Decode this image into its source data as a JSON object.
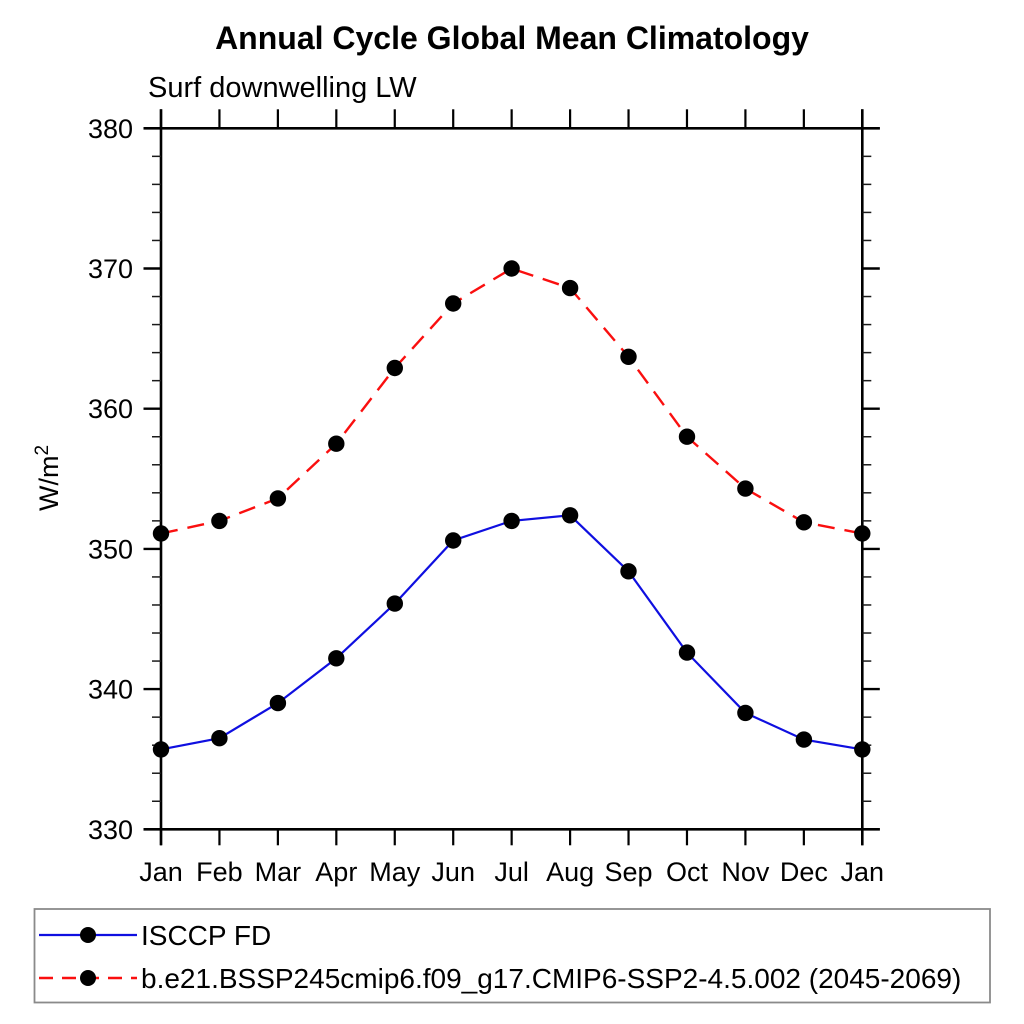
{
  "chart_data": {
    "type": "line",
    "title": "Annual Cycle Global Mean Climatology",
    "subtitle": "Surf downwelling LW",
    "ylabel": "W/m²",
    "xlabel": "",
    "x": [
      "Jan",
      "Feb",
      "Mar",
      "Apr",
      "May",
      "Jun",
      "Jul",
      "Aug",
      "Sep",
      "Oct",
      "Nov",
      "Dec",
      "Jan"
    ],
    "ylim": [
      330,
      380
    ],
    "yticks": [
      330,
      340,
      350,
      360,
      370,
      380
    ],
    "y_minor_step": 2,
    "grid": false,
    "legend_position": "bottom",
    "series": [
      {
        "name": "ISCCP FD",
        "color": "#0f0fe0",
        "line_style": "solid",
        "marker": "filled-circle",
        "marker_color": "#000000",
        "values": [
          335.7,
          336.5,
          339.0,
          342.2,
          346.1,
          350.6,
          352.0,
          352.4,
          348.4,
          342.6,
          338.3,
          336.4,
          335.7
        ]
      },
      {
        "name": "b.e21.BSSP245cmip6.f09_g17.CMIP6-SSP2-4.5.002 (2045-2069)",
        "color": "#fa0f0f",
        "line_style": "dashed",
        "marker": "filled-circle",
        "marker_color": "#000000",
        "values": [
          351.1,
          352.0,
          353.6,
          357.5,
          362.9,
          367.5,
          370.0,
          368.6,
          363.7,
          358.0,
          354.3,
          351.9,
          351.1
        ]
      }
    ]
  },
  "legend": {
    "border_color": "#8a8a8a"
  }
}
